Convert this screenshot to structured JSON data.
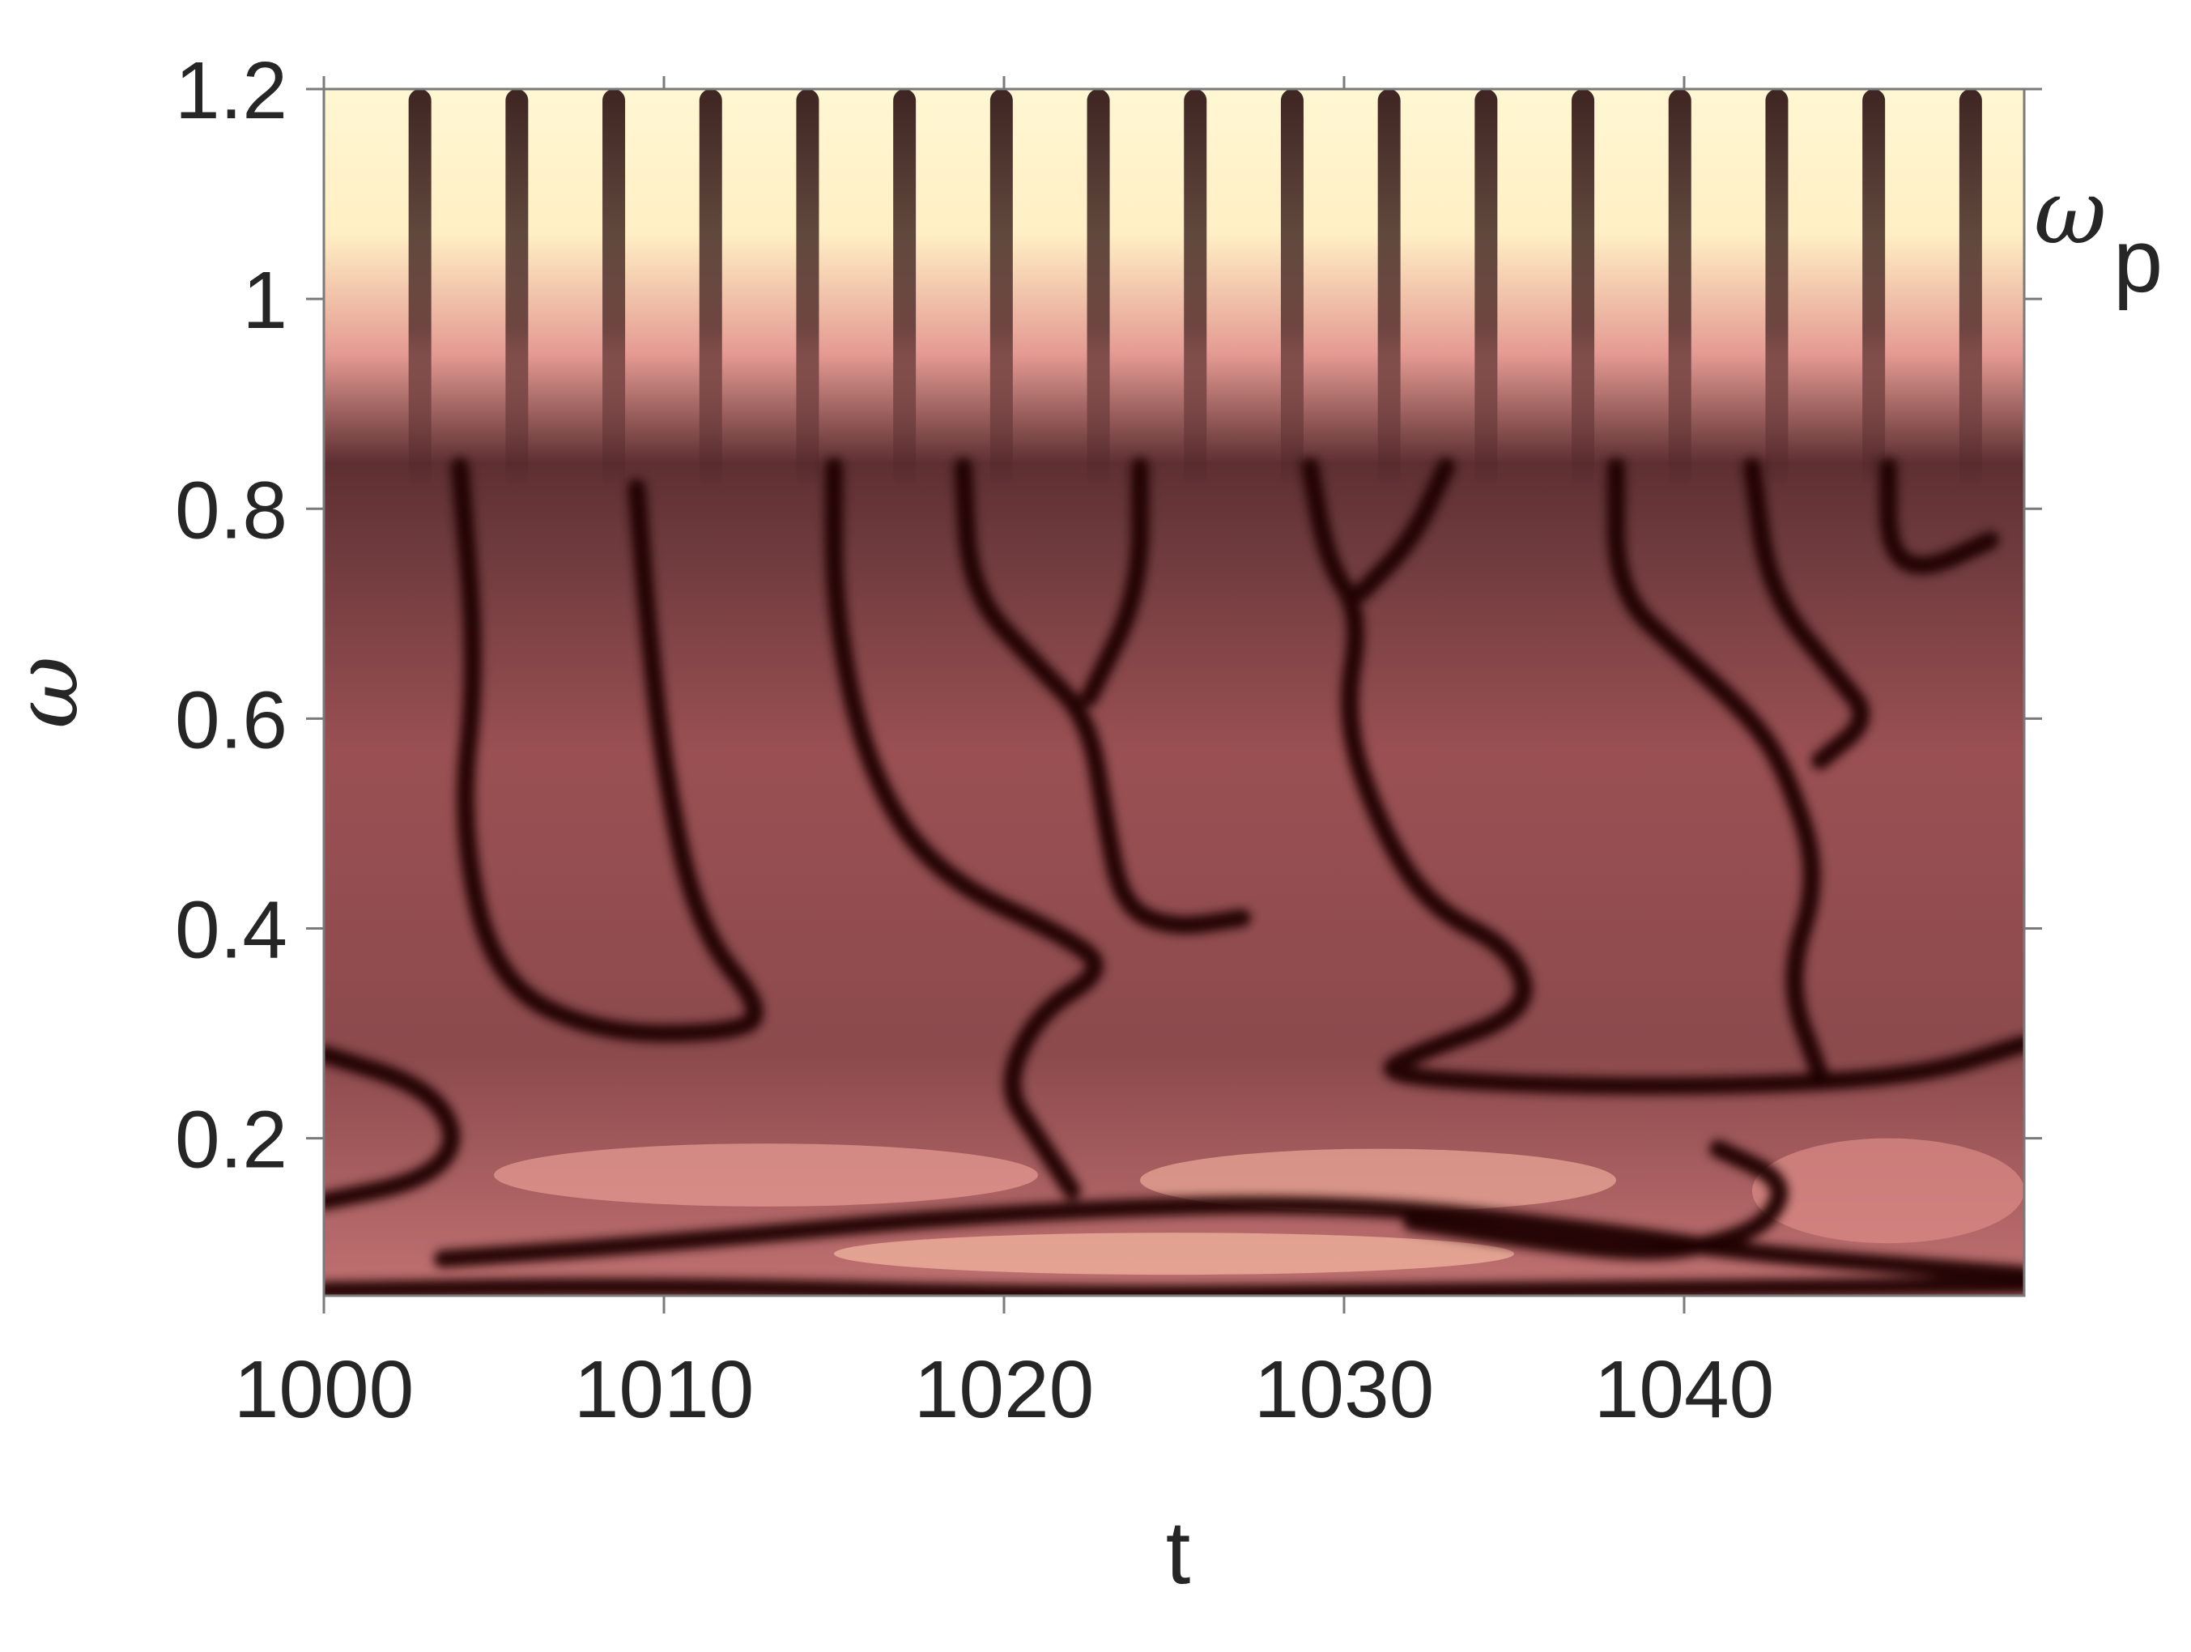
{
  "chart_data": {
    "type": "heatmap",
    "title": "",
    "xlabel": "t",
    "ylabel": "ω",
    "xlim": [
      1000,
      1050
    ],
    "ylim": [
      0.05,
      1.2
    ],
    "x_ticks": [
      1000,
      1010,
      1020,
      1030,
      1040
    ],
    "x_tick_labels": [
      "1000",
      "1010",
      "1020",
      "1030",
      "1040"
    ],
    "y_ticks": [
      0.2,
      0.4,
      0.6,
      0.8,
      1.0,
      1.2
    ],
    "y_tick_labels": [
      "0.2",
      "0.4",
      "0.6",
      "0.8",
      "1",
      "1.2"
    ],
    "right_axis_annotation": {
      "symbol": "ω",
      "subscript": "p",
      "y": 1.05
    },
    "grid": false,
    "legend": "none",
    "colormap": [
      "#1c0003",
      "#5e2f32",
      "#ad5e61",
      "#e49a92",
      "#fff7d3"
    ],
    "high_frequency_band": {
      "y_from": 0.82,
      "y_to": 1.2,
      "stripe_period": 2.85,
      "first_peak": 1001.4
    },
    "dark_ridges": [
      {
        "points": [
          [
            1000,
            0.14
          ],
          [
            1003,
            0.16
          ],
          [
            1004,
            0.2
          ],
          [
            1003,
            0.25
          ],
          [
            1000,
            0.28
          ]
        ]
      },
      {
        "points": [
          [
            1003.5,
            0.085
          ],
          [
            1010,
            0.1
          ],
          [
            1020,
            0.13
          ],
          [
            1030,
            0.14
          ],
          [
            1038,
            0.11
          ],
          [
            1042,
            0.09
          ],
          [
            1050,
            0.07
          ]
        ]
      },
      {
        "points": [
          [
            1000,
            0.055
          ],
          [
            1010,
            0.06
          ],
          [
            1022,
            0.05
          ],
          [
            1035,
            0.055
          ],
          [
            1050,
            0.06
          ]
        ]
      },
      {
        "points": [
          [
            1004,
            0.84
          ],
          [
            1004.5,
            0.65
          ],
          [
            1004,
            0.5
          ],
          [
            1005,
            0.35
          ],
          [
            1008,
            0.3
          ],
          [
            1012,
            0.3
          ],
          [
            1013,
            0.32
          ],
          [
            1011,
            0.4
          ],
          [
            1010,
            0.55
          ],
          [
            1009.5,
            0.7
          ],
          [
            1009.2,
            0.82
          ]
        ]
      },
      {
        "points": [
          [
            1015,
            0.84
          ],
          [
            1015,
            0.7
          ],
          [
            1016,
            0.55
          ],
          [
            1018,
            0.45
          ],
          [
            1022,
            0.39
          ],
          [
            1023,
            0.36
          ],
          [
            1021,
            0.32
          ],
          [
            1020,
            0.25
          ],
          [
            1021,
            0.2
          ],
          [
            1022,
            0.15
          ]
        ]
      },
      {
        "points": [
          [
            1018.8,
            0.84
          ],
          [
            1019,
            0.72
          ],
          [
            1021,
            0.65
          ],
          [
            1022.5,
            0.6
          ],
          [
            1023,
            0.5
          ],
          [
            1023.5,
            0.42
          ],
          [
            1025,
            0.4
          ],
          [
            1027,
            0.41
          ]
        ]
      },
      {
        "points": [
          [
            1024,
            0.84
          ],
          [
            1024,
            0.72
          ],
          [
            1022.5,
            0.62
          ]
        ]
      },
      {
        "points": [
          [
            1029,
            0.84
          ],
          [
            1029.5,
            0.75
          ],
          [
            1030.5,
            0.7
          ],
          [
            1030,
            0.6
          ],
          [
            1031,
            0.5
          ],
          [
            1032.5,
            0.42
          ],
          [
            1035,
            0.38
          ],
          [
            1035.5,
            0.32
          ],
          [
            1032,
            0.28
          ],
          [
            1031,
            0.26
          ],
          [
            1036,
            0.25
          ],
          [
            1042,
            0.25
          ],
          [
            1047,
            0.26
          ],
          [
            1050,
            0.29
          ]
        ]
      },
      {
        "points": [
          [
            1033,
            0.84
          ],
          [
            1032,
            0.77
          ],
          [
            1030.5,
            0.72
          ]
        ]
      },
      {
        "points": [
          [
            1038,
            0.84
          ],
          [
            1038,
            0.72
          ],
          [
            1040,
            0.66
          ],
          [
            1042,
            0.6
          ],
          [
            1043,
            0.55
          ],
          [
            1044,
            0.45
          ],
          [
            1043,
            0.35
          ],
          [
            1044,
            0.26
          ]
        ]
      },
      {
        "points": [
          [
            1042,
            0.84
          ],
          [
            1042.5,
            0.72
          ],
          [
            1044.5,
            0.64
          ],
          [
            1045.5,
            0.6
          ],
          [
            1044,
            0.56
          ]
        ]
      },
      {
        "points": [
          [
            1046,
            0.84
          ],
          [
            1046,
            0.76
          ],
          [
            1047,
            0.74
          ],
          [
            1049,
            0.77
          ]
        ]
      },
      {
        "points": [
          [
            1041,
            0.19
          ],
          [
            1043,
            0.16
          ],
          [
            1042.5,
            0.12
          ],
          [
            1041,
            0.1
          ],
          [
            1039,
            0.09
          ],
          [
            1036,
            0.1
          ],
          [
            1032,
            0.12
          ]
        ]
      }
    ]
  }
}
